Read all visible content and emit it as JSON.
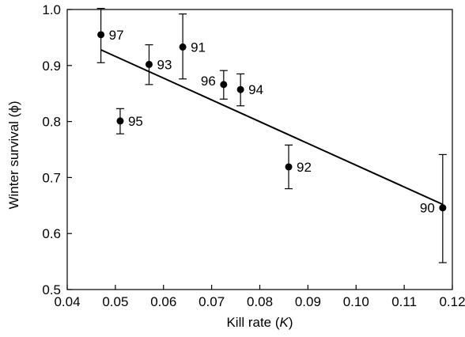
{
  "chart_data": {
    "type": "scatter",
    "title": "",
    "xlabel": "Kill rate (K)",
    "xlabel_parts": [
      "Kill rate (",
      "K",
      ")"
    ],
    "ylabel": "Winter survival (ϕ)",
    "xlim": [
      0.04,
      0.12
    ],
    "ylim": [
      0.5,
      1.0
    ],
    "xticks": [
      "0.04",
      "0.05",
      "0.06",
      "0.07",
      "0.08",
      "0.09",
      "0.10",
      "0.11",
      "0.12"
    ],
    "yticks": [
      "0.5",
      "0.6",
      "0.7",
      "0.8",
      "0.9",
      "1.0"
    ],
    "grid": false,
    "points": [
      {
        "label": "97",
        "x": 0.047,
        "y": 0.955,
        "err_low": 0.905,
        "err_high": 1.002
      },
      {
        "label": "93",
        "x": 0.057,
        "y": 0.902,
        "err_low": 0.866,
        "err_high": 0.937
      },
      {
        "label": "91",
        "x": 0.064,
        "y": 0.933,
        "err_low": 0.876,
        "err_high": 0.992
      },
      {
        "label": "96",
        "x": 0.0725,
        "y": 0.866,
        "err_low": 0.84,
        "err_high": 0.891
      },
      {
        "label": "94",
        "x": 0.076,
        "y": 0.857,
        "err_low": 0.828,
        "err_high": 0.885
      },
      {
        "label": "95",
        "x": 0.051,
        "y": 0.801,
        "err_low": 0.778,
        "err_high": 0.823
      },
      {
        "label": "92",
        "x": 0.086,
        "y": 0.719,
        "err_low": 0.68,
        "err_high": 0.758
      },
      {
        "label": "90",
        "x": 0.118,
        "y": 0.646,
        "err_low": 0.548,
        "err_high": 0.741
      }
    ],
    "fit_line": {
      "x": [
        0.047,
        0.118
      ],
      "y": [
        0.928,
        0.652
      ]
    }
  }
}
